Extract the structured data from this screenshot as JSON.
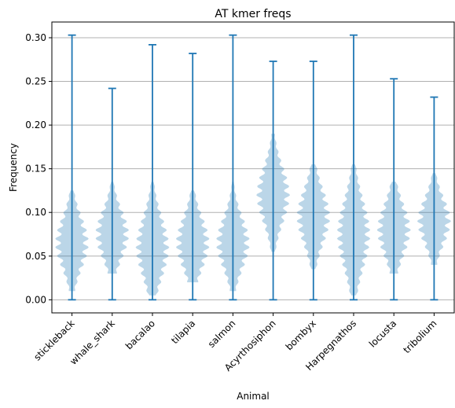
{
  "chart_data": {
    "type": "violin",
    "title": "AT kmer freqs",
    "xlabel": "Animal",
    "ylabel": "Frequency",
    "categories": [
      "stickleback",
      "whale_shark",
      "bacalao",
      "tilapia",
      "salmon",
      "Acyrthosiphon",
      "bombyx",
      "Harpegnathos",
      "locusta",
      "tribolium"
    ],
    "min": [
      0.0,
      0.0,
      0.0,
      0.0,
      0.0,
      0.0,
      0.0,
      0.0,
      0.0,
      0.0
    ],
    "max": [
      0.303,
      0.242,
      0.292,
      0.282,
      0.303,
      0.273,
      0.273,
      0.303,
      0.253,
      0.232
    ],
    "density_center": [
      0.065,
      0.075,
      0.06,
      0.065,
      0.065,
      0.12,
      0.095,
      0.075,
      0.08,
      0.09
    ],
    "density_spread": [
      0.03,
      0.028,
      0.035,
      0.03,
      0.03,
      0.033,
      0.032,
      0.04,
      0.03,
      0.027
    ],
    "density_extent": [
      [
        0.01,
        0.125
      ],
      [
        0.03,
        0.135
      ],
      [
        0.005,
        0.135
      ],
      [
        0.02,
        0.125
      ],
      [
        0.01,
        0.135
      ],
      [
        0.055,
        0.19
      ],
      [
        0.035,
        0.155
      ],
      [
        0.005,
        0.155
      ],
      [
        0.03,
        0.135
      ],
      [
        0.04,
        0.145
      ]
    ],
    "y_ticks": [
      0.0,
      0.05,
      0.1,
      0.15,
      0.2,
      0.25,
      0.3
    ],
    "y_tick_labels": [
      "0.00",
      "0.05",
      "0.10",
      "0.15",
      "0.20",
      "0.25",
      "0.30"
    ],
    "ylim": [
      -0.015,
      0.318
    ],
    "grid": "horizontal",
    "colors": {
      "body": "#1f77b4",
      "line": "#1f77b4",
      "grid": "#b0b0b0"
    }
  }
}
